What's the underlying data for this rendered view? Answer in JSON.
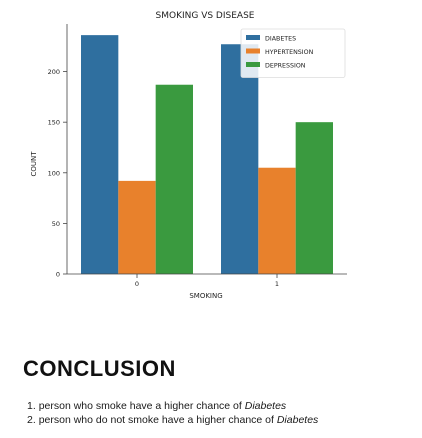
{
  "chart_data": {
    "type": "bar",
    "title": "SMOKING VS DISEASE",
    "xlabel": "SMOKING",
    "ylabel": "COUNT",
    "categories": [
      "0",
      "1"
    ],
    "series": [
      {
        "name": "DIABETES",
        "color": "#2f6f9f",
        "values": [
          236,
          227
        ]
      },
      {
        "name": "HYPERTENSION",
        "color": "#e8812c",
        "values": [
          92,
          105
        ]
      },
      {
        "name": "DEPRESSION",
        "color": "#3a9a3f",
        "values": [
          187,
          150
        ]
      }
    ],
    "yticks": [
      0,
      50,
      100,
      150,
      200
    ],
    "ylim": [
      0,
      247
    ],
    "grid": false,
    "legend": "top-right"
  },
  "conclusion": {
    "heading": "CONCLUSION",
    "items": [
      {
        "num": "1.",
        "text": "person who smoke have a higher chance of ",
        "disease": "Diabetes"
      },
      {
        "num": "2.",
        "text": "person who do not smoke have a higher chance of ",
        "disease": "Diabetes"
      }
    ]
  }
}
